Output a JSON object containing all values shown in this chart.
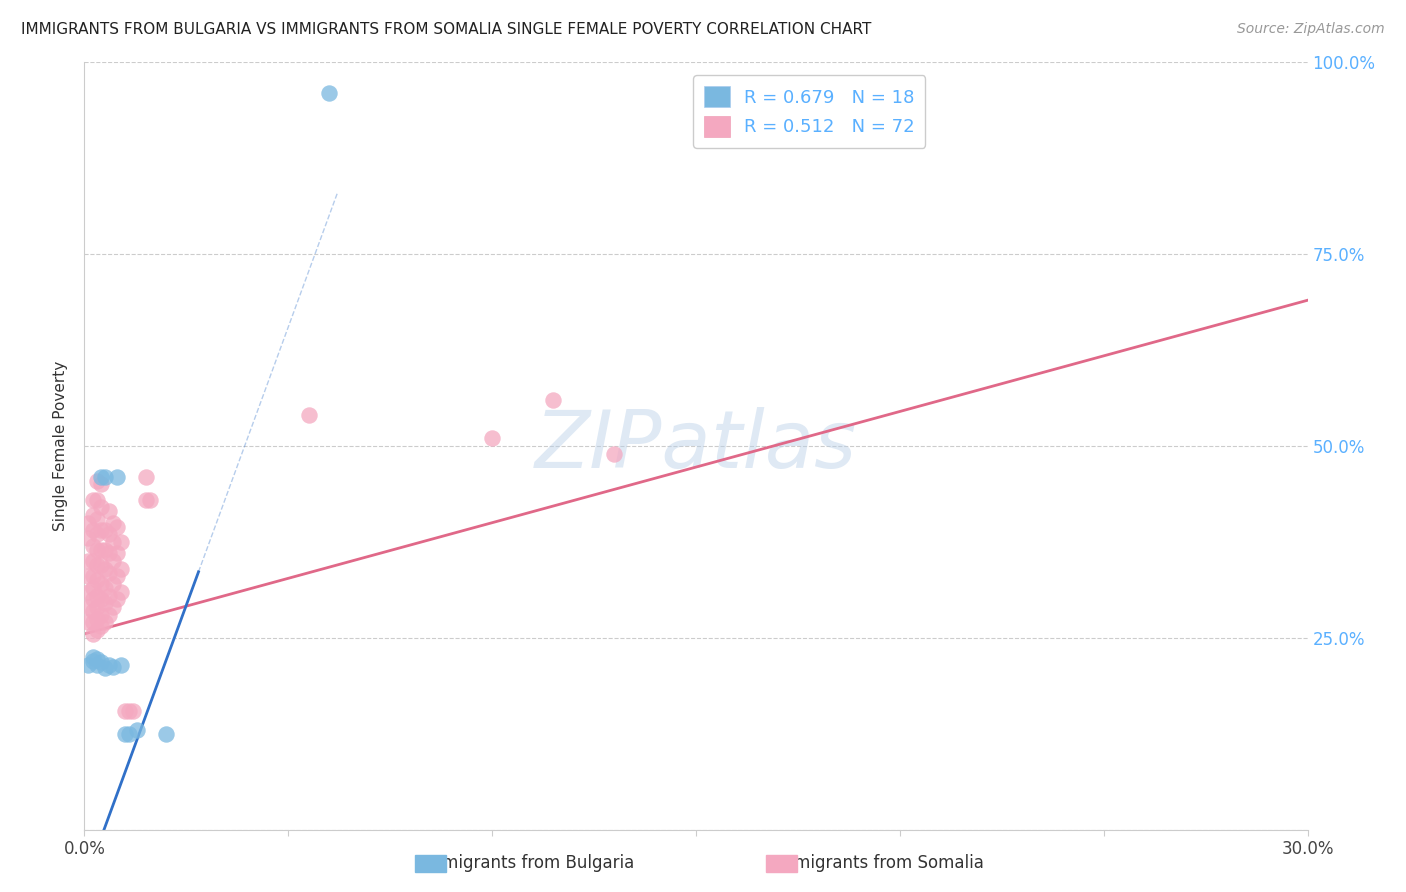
{
  "title": "IMMIGRANTS FROM BULGARIA VS IMMIGRANTS FROM SOMALIA SINGLE FEMALE POVERTY CORRELATION CHART",
  "source": "Source: ZipAtlas.com",
  "ylabel": "Single Female Poverty",
  "xlim": [
    0.0,
    0.3
  ],
  "ylim": [
    0.0,
    1.0
  ],
  "bg_color": "#ffffff",
  "watermark_text": "ZIPatlas",
  "legend_entries": [
    {
      "label_r": "R = 0.679",
      "label_n": "N = 18",
      "color": "#a8c8f0"
    },
    {
      "label_r": "R = 0.512",
      "label_n": "N = 72",
      "color": "#f4a8c0"
    }
  ],
  "bulgaria_scatter": [
    [
      0.001,
      0.215
    ],
    [
      0.002,
      0.22
    ],
    [
      0.002,
      0.225
    ],
    [
      0.003,
      0.215
    ],
    [
      0.003,
      0.222
    ],
    [
      0.004,
      0.218
    ],
    [
      0.004,
      0.46
    ],
    [
      0.005,
      0.46
    ],
    [
      0.005,
      0.21
    ],
    [
      0.006,
      0.215
    ],
    [
      0.007,
      0.212
    ],
    [
      0.008,
      0.46
    ],
    [
      0.009,
      0.215
    ],
    [
      0.01,
      0.125
    ],
    [
      0.011,
      0.125
    ],
    [
      0.013,
      0.13
    ],
    [
      0.02,
      0.125
    ],
    [
      0.06,
      0.96
    ]
  ],
  "somalia_scatter": [
    [
      0.001,
      0.27
    ],
    [
      0.001,
      0.29
    ],
    [
      0.001,
      0.31
    ],
    [
      0.001,
      0.33
    ],
    [
      0.001,
      0.35
    ],
    [
      0.001,
      0.38
    ],
    [
      0.001,
      0.4
    ],
    [
      0.002,
      0.255
    ],
    [
      0.002,
      0.27
    ],
    [
      0.002,
      0.285
    ],
    [
      0.002,
      0.3
    ],
    [
      0.002,
      0.315
    ],
    [
      0.002,
      0.33
    ],
    [
      0.002,
      0.35
    ],
    [
      0.002,
      0.37
    ],
    [
      0.002,
      0.39
    ],
    [
      0.002,
      0.41
    ],
    [
      0.002,
      0.43
    ],
    [
      0.003,
      0.26
    ],
    [
      0.003,
      0.275
    ],
    [
      0.003,
      0.29
    ],
    [
      0.003,
      0.305
    ],
    [
      0.003,
      0.325
    ],
    [
      0.003,
      0.345
    ],
    [
      0.003,
      0.365
    ],
    [
      0.003,
      0.385
    ],
    [
      0.003,
      0.405
    ],
    [
      0.003,
      0.43
    ],
    [
      0.003,
      0.455
    ],
    [
      0.004,
      0.265
    ],
    [
      0.004,
      0.28
    ],
    [
      0.004,
      0.3
    ],
    [
      0.004,
      0.32
    ],
    [
      0.004,
      0.345
    ],
    [
      0.004,
      0.365
    ],
    [
      0.004,
      0.39
    ],
    [
      0.004,
      0.42
    ],
    [
      0.004,
      0.45
    ],
    [
      0.005,
      0.27
    ],
    [
      0.005,
      0.295
    ],
    [
      0.005,
      0.315
    ],
    [
      0.005,
      0.34
    ],
    [
      0.005,
      0.365
    ],
    [
      0.005,
      0.39
    ],
    [
      0.006,
      0.28
    ],
    [
      0.006,
      0.305
    ],
    [
      0.006,
      0.335
    ],
    [
      0.006,
      0.36
    ],
    [
      0.006,
      0.385
    ],
    [
      0.006,
      0.415
    ],
    [
      0.007,
      0.29
    ],
    [
      0.007,
      0.32
    ],
    [
      0.007,
      0.35
    ],
    [
      0.007,
      0.375
    ],
    [
      0.007,
      0.4
    ],
    [
      0.008,
      0.3
    ],
    [
      0.008,
      0.33
    ],
    [
      0.008,
      0.36
    ],
    [
      0.008,
      0.395
    ],
    [
      0.009,
      0.31
    ],
    [
      0.009,
      0.34
    ],
    [
      0.009,
      0.375
    ],
    [
      0.01,
      0.155
    ],
    [
      0.011,
      0.155
    ],
    [
      0.012,
      0.155
    ],
    [
      0.015,
      0.43
    ],
    [
      0.015,
      0.46
    ],
    [
      0.016,
      0.43
    ],
    [
      0.055,
      0.54
    ],
    [
      0.1,
      0.51
    ],
    [
      0.115,
      0.56
    ],
    [
      0.13,
      0.49
    ]
  ],
  "bulgaria_color": "#7ab8e0",
  "somalia_color": "#f4a8c0",
  "bulgaria_line_color": "#3070c8",
  "somalia_line_color": "#e06888",
  "bulgaria_regression": {
    "slope": 14.5,
    "intercept": -0.07
  },
  "somalia_regression": {
    "slope": 1.45,
    "intercept": 0.255
  },
  "yticks": [
    0.0,
    0.25,
    0.5,
    0.75,
    1.0
  ],
  "ytick_labels_right": [
    "",
    "25.0%",
    "50.0%",
    "75.0%",
    "100.0%"
  ],
  "xtick_positions": [
    0.0,
    0.05,
    0.1,
    0.15,
    0.2,
    0.25,
    0.3
  ],
  "xtick_labels": [
    "0.0%",
    "",
    "",
    "",
    "",
    "",
    "30.0%"
  ]
}
